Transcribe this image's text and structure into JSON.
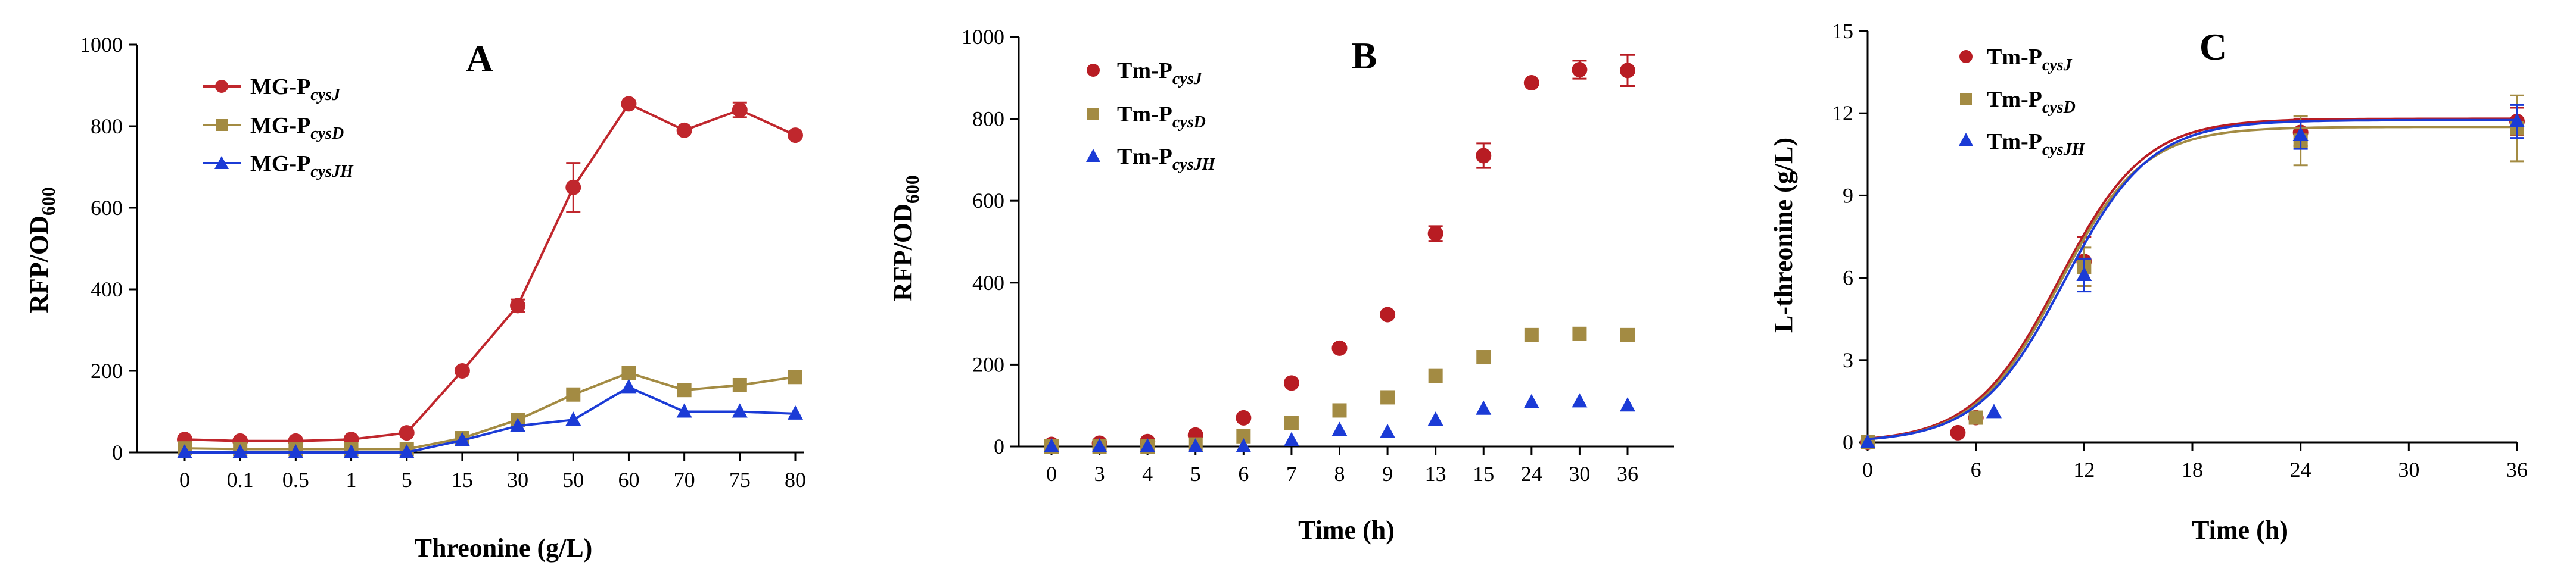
{
  "chart_data": [
    {
      "panel": "A",
      "type": "line",
      "xlabel": "Threonine (g/L)",
      "ylabel": "RFP/OD",
      "ylabel_sub": "600",
      "ylim": [
        0,
        1000
      ],
      "yticks": [
        0,
        200,
        400,
        600,
        800,
        1000
      ],
      "categories": [
        "0",
        "0.1",
        "0.5",
        "1",
        "5",
        "15",
        "30",
        "50",
        "60",
        "70",
        "75",
        "80"
      ],
      "series": [
        {
          "name": "MG-P",
          "sub": "cysJ",
          "marker": "circle",
          "color": "#c0272d",
          "values": [
            32,
            28,
            28,
            32,
            48,
            200,
            360,
            650,
            855,
            790,
            840,
            778
          ],
          "errors": [
            0,
            0,
            0,
            0,
            0,
            0,
            15,
            60,
            0,
            0,
            18,
            0
          ]
        },
        {
          "name": "MG-P",
          "sub": "cysD",
          "marker": "square",
          "color": "#a38b43",
          "values": [
            10,
            8,
            8,
            8,
            8,
            35,
            80,
            142,
            195,
            153,
            165,
            185
          ],
          "errors": [
            0,
            0,
            0,
            0,
            0,
            0,
            0,
            0,
            0,
            0,
            0,
            0
          ]
        },
        {
          "name": "MG-P",
          "sub": "cysJH",
          "marker": "triangle",
          "color": "#1b3bd6",
          "values": [
            0,
            0,
            0,
            0,
            0,
            30,
            65,
            80,
            160,
            100,
            100,
            95
          ],
          "errors": [
            0,
            0,
            0,
            0,
            0,
            0,
            0,
            0,
            0,
            0,
            0,
            0
          ]
        }
      ]
    },
    {
      "panel": "B",
      "type": "scatter",
      "xlabel": "Time (h)",
      "ylabel": "RFP/OD",
      "ylabel_sub": "600",
      "ylim": [
        0,
        1000
      ],
      "yticks": [
        0,
        200,
        400,
        600,
        800,
        1000
      ],
      "categories": [
        "0",
        "3",
        "4",
        "5",
        "6",
        "7",
        "8",
        "9",
        "13",
        "15",
        "24",
        "30",
        "36"
      ],
      "series": [
        {
          "name": "Tm-P",
          "sub": "cysJ",
          "marker": "circle",
          "color": "#b81c23",
          "values": [
            5,
            8,
            12,
            28,
            70,
            155,
            240,
            322,
            520,
            710,
            888,
            920,
            918
          ],
          "errors": [
            0,
            0,
            0,
            0,
            0,
            0,
            0,
            0,
            18,
            30,
            0,
            22,
            38
          ]
        },
        {
          "name": "Tm-P",
          "sub": "cysD",
          "marker": "square",
          "color": "#a38b43",
          "values": [
            0,
            0,
            0,
            5,
            25,
            58,
            88,
            120,
            172,
            218,
            272,
            275,
            272
          ],
          "errors": [
            0,
            0,
            0,
            0,
            0,
            0,
            0,
            0,
            0,
            0,
            0,
            0,
            0
          ]
        },
        {
          "name": "Tm-P",
          "sub": "cysJH",
          "marker": "triangle",
          "color": "#1b3bd6",
          "values": [
            0,
            0,
            0,
            0,
            0,
            15,
            40,
            35,
            65,
            92,
            108,
            110,
            100
          ],
          "errors": [
            0,
            0,
            0,
            0,
            0,
            0,
            0,
            0,
            0,
            0,
            0,
            0,
            0
          ]
        }
      ]
    },
    {
      "panel": "C",
      "type": "scatter",
      "xlabel": "Time (h)",
      "ylabel": "L-threonine (g/L)",
      "xlim": [
        0,
        36
      ],
      "ylim": [
        0,
        15
      ],
      "xticks": [
        0,
        6,
        12,
        18,
        24,
        30,
        36
      ],
      "yticks": [
        0,
        3,
        6,
        9,
        12,
        15
      ],
      "series": [
        {
          "name": "Tm-P",
          "sub": "cysJ",
          "marker": "circle",
          "color": "#b81c23",
          "x": [
            0,
            5,
            6,
            12,
            24,
            36
          ],
          "values": [
            0,
            0.35,
            0.9,
            6.6,
            11.3,
            11.7
          ],
          "errors": [
            0,
            0,
            0,
            0.9,
            0.5,
            0.5
          ],
          "fit": {
            "top": 11.8,
            "mid": 10.6,
            "k": 0.42
          }
        },
        {
          "name": "Tm-P",
          "sub": "cysD",
          "marker": "square",
          "color": "#a38b43",
          "x": [
            0,
            6,
            12,
            24,
            36
          ],
          "values": [
            0,
            0.9,
            6.4,
            11.0,
            11.45
          ],
          "errors": [
            0,
            0,
            0.7,
            0.9,
            1.2
          ],
          "fit": {
            "top": 11.5,
            "mid": 10.6,
            "k": 0.43
          }
        },
        {
          "name": "Tm-P",
          "sub": "cysJH",
          "marker": "triangle",
          "color": "#1b3bd6",
          "x": [
            0,
            7,
            12,
            24,
            36
          ],
          "values": [
            0,
            1.1,
            6.1,
            11.2,
            11.7
          ],
          "errors": [
            0,
            0,
            0.6,
            0.5,
            0.6
          ],
          "fit": {
            "top": 11.75,
            "mid": 10.9,
            "k": 0.42
          }
        }
      ]
    }
  ]
}
